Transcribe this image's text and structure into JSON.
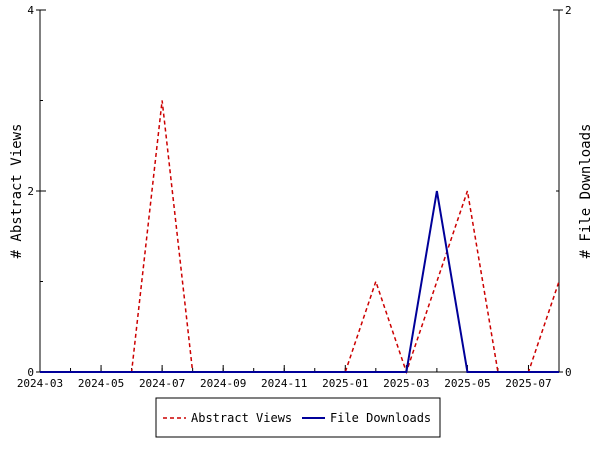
{
  "chart_data": {
    "type": "line",
    "x_ticks": [
      "2024-03",
      "2024-05",
      "2024-07",
      "2024-09",
      "2024-11",
      "2025-01",
      "2025-03",
      "2025-05",
      "2025-07"
    ],
    "x_range": [
      "2024-03",
      "2025-08"
    ],
    "y_left": {
      "label": "# Abstract Views",
      "range": [
        0,
        4
      ],
      "ticks": [
        "0",
        "2",
        "4"
      ]
    },
    "y_right": {
      "label": "# File Downloads",
      "range": [
        0,
        2
      ],
      "ticks": [
        "0",
        "1",
        "2"
      ]
    },
    "grid": false,
    "legend_position": "bottom-center",
    "series": [
      {
        "name": "Abstract Views",
        "axis": "left",
        "color": "#cc0000",
        "style": "dashed",
        "points": [
          [
            "2024-03",
            0
          ],
          [
            "2024-04",
            0
          ],
          [
            "2024-05",
            0
          ],
          [
            "2024-06",
            0
          ],
          [
            "2024-07",
            3
          ],
          [
            "2024-08",
            0
          ],
          [
            "2024-09",
            0
          ],
          [
            "2024-10",
            0
          ],
          [
            "2024-11",
            0
          ],
          [
            "2024-12",
            0
          ],
          [
            "2025-01",
            0
          ],
          [
            "2025-02",
            1
          ],
          [
            "2025-03",
            0
          ],
          [
            "2025-04",
            1
          ],
          [
            "2025-05",
            2
          ],
          [
            "2025-06",
            0
          ],
          [
            "2025-07",
            0
          ],
          [
            "2025-08",
            1
          ]
        ]
      },
      {
        "name": "File Downloads",
        "axis": "right",
        "color": "#000099",
        "style": "solid",
        "points": [
          [
            "2024-03",
            0
          ],
          [
            "2024-04",
            0
          ],
          [
            "2024-05",
            0
          ],
          [
            "2024-06",
            0
          ],
          [
            "2024-07",
            0
          ],
          [
            "2024-08",
            0
          ],
          [
            "2024-09",
            0
          ],
          [
            "2024-10",
            0
          ],
          [
            "2024-11",
            0
          ],
          [
            "2024-12",
            0
          ],
          [
            "2025-01",
            0
          ],
          [
            "2025-02",
            0
          ],
          [
            "2025-03",
            0
          ],
          [
            "2025-04",
            1
          ],
          [
            "2025-05",
            0
          ],
          [
            "2025-06",
            0
          ],
          [
            "2025-07",
            0
          ],
          [
            "2025-08",
            0
          ]
        ]
      }
    ]
  }
}
